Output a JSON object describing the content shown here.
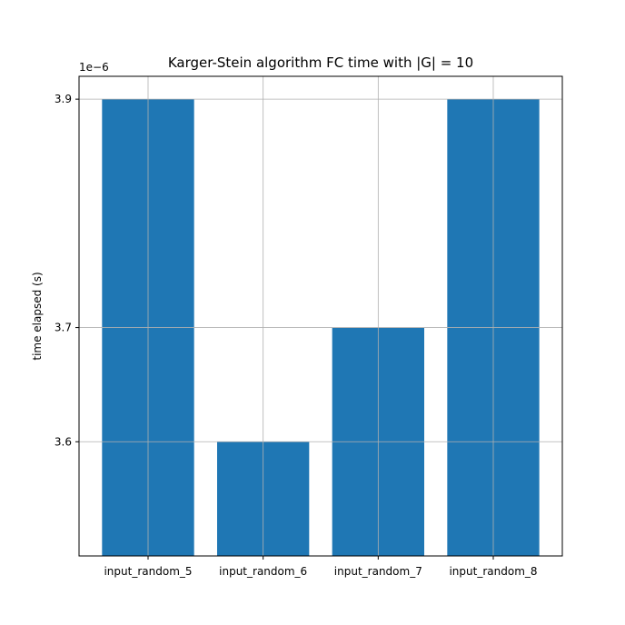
{
  "chart_data": {
    "type": "bar",
    "title": "Karger-Stein algorithm FC time with |G| = 10",
    "xlabel": "",
    "ylabel": "time elapsed (s)",
    "y_offset_label": "1e−6",
    "categories": [
      "input_random_5",
      "input_random_6",
      "input_random_7",
      "input_random_8"
    ],
    "values": [
      3.9,
      3.6,
      3.7,
      3.9
    ],
    "ylim": [
      3.5,
      3.92
    ],
    "yticks": [
      3.6,
      3.7,
      3.9
    ],
    "ytick_labels": [
      "3.6",
      "3.7",
      "3.9"
    ],
    "grid": true,
    "bar_color": "#1f77b4",
    "grid_color": "#b0b0b0"
  }
}
